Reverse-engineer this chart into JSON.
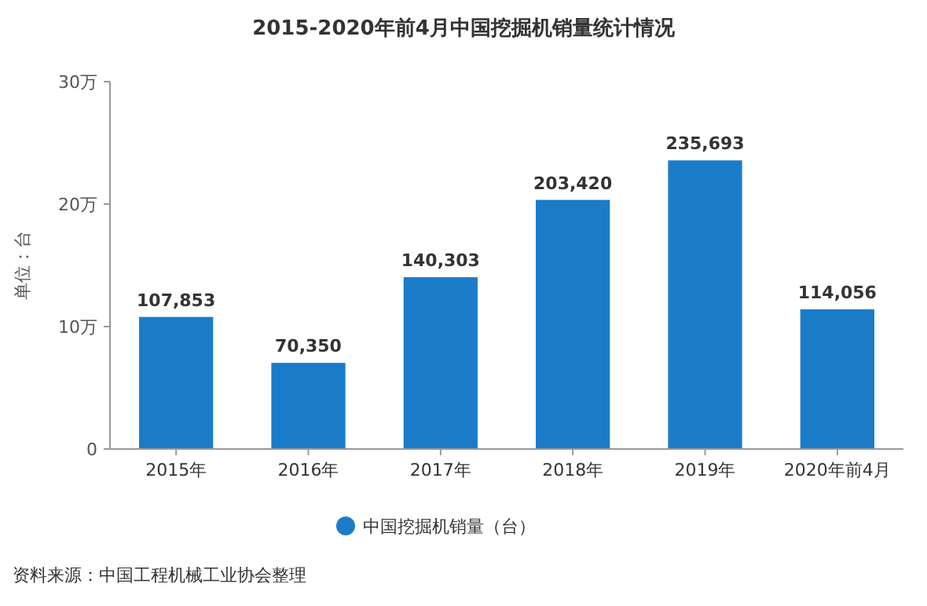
{
  "chart_data": {
    "type": "bar",
    "title": "2015-2020年前4月中国挖掘机销量统计情况",
    "ylabel": "单位：台",
    "categories": [
      "2015年",
      "2016年",
      "2017年",
      "2018年",
      "2019年",
      "2020年前4月"
    ],
    "series": [
      {
        "name": "中国挖掘机销量（台）",
        "color": "#1a7cc9",
        "values": [
          10.7853,
          7.035,
          14.0303,
          20.342,
          23.5693,
          11.4056
        ]
      }
    ],
    "value_labels": [
      "107,853",
      "70,350",
      "140,303",
      "203,420",
      "235,693",
      "114,056"
    ],
    "ylim": [
      0,
      30
    ],
    "yticks": [
      0,
      {
        "value": 10,
        "label": "10万"
      },
      {
        "value": 20,
        "label": "20万"
      },
      {
        "value": 30,
        "label": "30万"
      }
    ],
    "legend": "bottom",
    "marker": "circle",
    "annotations": [
      "资料来源：中国工程机械工业协会整理"
    ]
  }
}
